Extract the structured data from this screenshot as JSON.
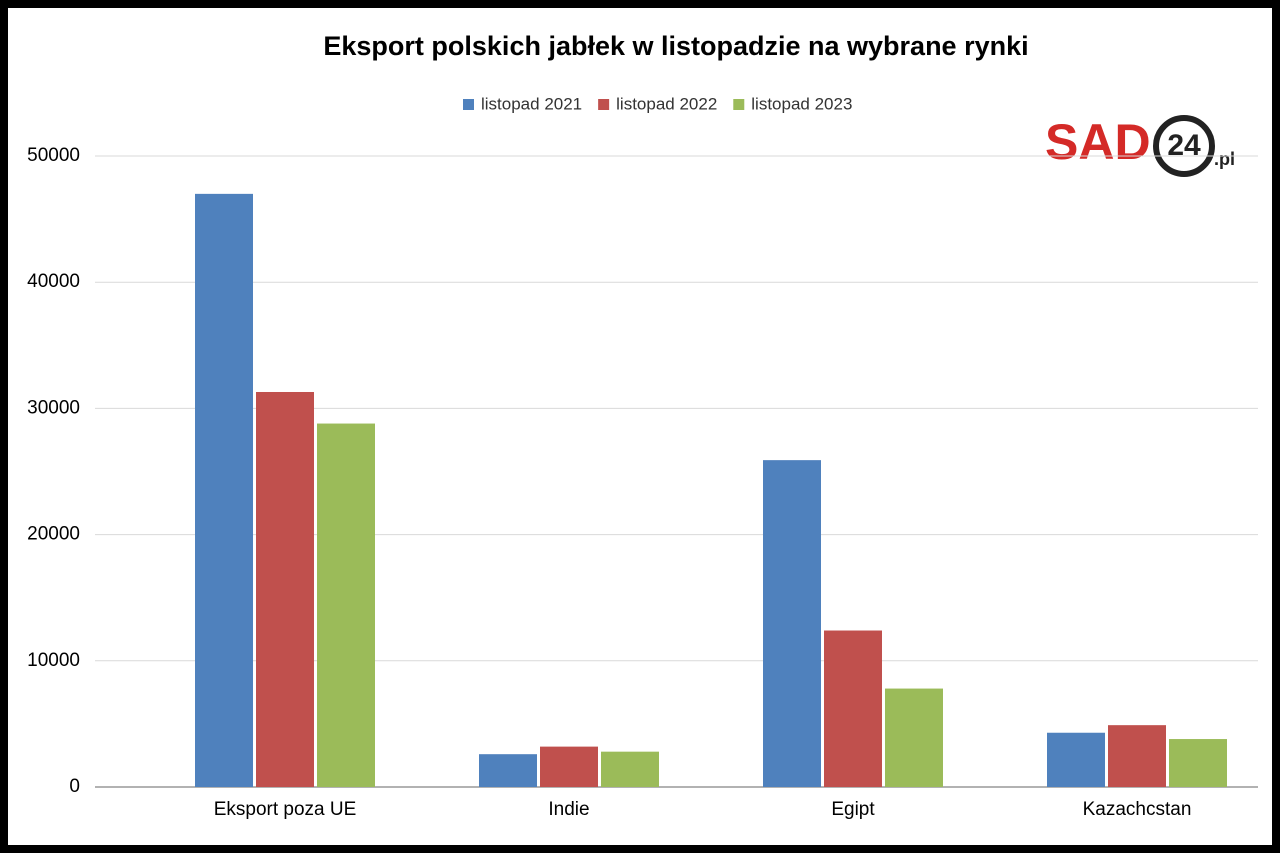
{
  "chart_data": {
    "type": "bar",
    "title": "Eksport polskich jabłek w listopadzie na wybrane rynki",
    "categories": [
      "Eksport poza UE",
      "Indie",
      "Egipt",
      "Kazachcstan"
    ],
    "series": [
      {
        "name": "listopad 2021",
        "color": "#4f81bd",
        "values": [
          47000,
          2600,
          25900,
          4300
        ]
      },
      {
        "name": "listopad 2022",
        "color": "#c0504d",
        "values": [
          31300,
          3200,
          12400,
          4900
        ]
      },
      {
        "name": "listopad 2023",
        "color": "#9bbb59",
        "values": [
          28800,
          2800,
          7800,
          3800
        ]
      }
    ],
    "ylim": [
      0,
      50000
    ],
    "yticks": [
      0,
      10000,
      20000,
      30000,
      40000,
      50000
    ],
    "grid": true,
    "legend": "top"
  },
  "logo": {
    "brand": "SAD",
    "number": "24",
    "domain": ".pl"
  }
}
